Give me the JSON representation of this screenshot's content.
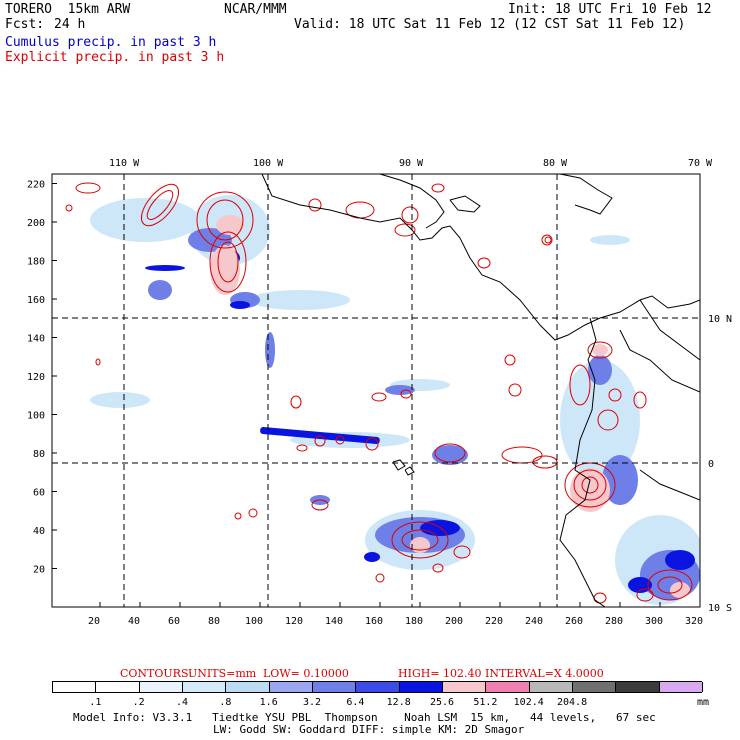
{
  "header": {
    "model": "TORERO  15km ARW",
    "org": "NCAR/MMM",
    "init": "Init: 18 UTC Fri 10 Feb 12",
    "fcst_label": "Fcst:",
    "fcst_value": "24 h",
    "valid": "Valid: 18 UTC Sat 11 Feb 12 (12 CST Sat 11 Feb 12)",
    "cumulus": "Cumulus precip. in past 3 h",
    "explicit": "Explicit precip. in past 3 h"
  },
  "map": {
    "lon_labels": [
      "110 W",
      "100 W",
      "90 W",
      "80 W",
      "70 W"
    ],
    "lat_labels": [
      "10 N",
      "0",
      "10 S"
    ],
    "x_ticks": [
      "20",
      "40",
      "60",
      "80",
      "100",
      "120",
      "140",
      "160",
      "180",
      "200",
      "220",
      "240",
      "260",
      "280",
      "300",
      "320"
    ],
    "y_ticks": [
      "20",
      "40",
      "60",
      "80",
      "100",
      "120",
      "140",
      "160",
      "180",
      "200",
      "220"
    ],
    "colors": {
      "cumulus_light": "#c8e4f8",
      "cumulus_mid": "#6f7fe8",
      "cumulus_dark": "#0a14e0",
      "explicit_contour": "#dd0000",
      "explicit_fill": "#f6c8cc",
      "coast": "#000000"
    }
  },
  "contours": {
    "title": "CONTOURS:",
    "units": "UNITS=mm",
    "low": "LOW= 0.10000",
    "high": "HIGH=  102.40",
    "interval": "INTERVAL=X  4.0000"
  },
  "legend": {
    "labels": [
      ".1",
      ".2",
      ".4",
      ".8",
      "1.6",
      "3.2",
      "6.4",
      "12.8",
      "25.6",
      "51.2",
      "102.4",
      "204.8"
    ],
    "unit": "mm",
    "colors": [
      "#ffffff",
      "#ffffff",
      "#eaf4fc",
      "#d4eaf8",
      "#bcdcf4",
      "#9aa6ee",
      "#6f7fe8",
      "#3c4ae8",
      "#0a14e0",
      "#f6c8cc",
      "#f080b0",
      "#b8b8b8",
      "#707070",
      "#3c3c3c",
      "#d8a8f0"
    ]
  },
  "footer": {
    "line1": "Model Info: V3.3.1   Tiedtke YSU PBL  Thompson    Noah LSM  15 km,   44 levels,   67 sec",
    "line2": "LW: Godd SW: Goddard DIFF: simple KM: 2D Smagor"
  }
}
